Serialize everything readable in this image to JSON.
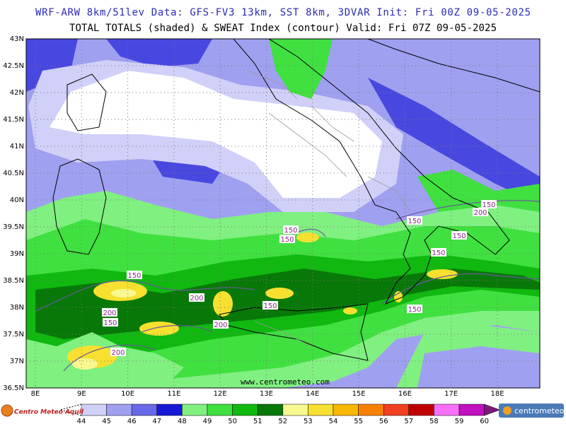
{
  "header": {
    "line1": "WRF-ARW 8km/51lev  Data: GFS-FV3 13km, SST 8km, 3DVAR  Init: Fri 00Z 09-05-2025",
    "line2": "TOTAL TOTALS (shaded) & SWEAT Index (contour)  Valid: Fri 07Z 09-05-2025"
  },
  "map": {
    "lat_ticks": [
      {
        "value": 43,
        "label": "43N"
      },
      {
        "value": 42.5,
        "label": "42.5N"
      },
      {
        "value": 42,
        "label": "42N"
      },
      {
        "value": 41.5,
        "label": "41.5N"
      },
      {
        "value": 41,
        "label": "41N"
      },
      {
        "value": 40.5,
        "label": "40.5N"
      },
      {
        "value": 40,
        "label": "40N"
      },
      {
        "value": 39.5,
        "label": "39.5N"
      },
      {
        "value": 39,
        "label": "39N"
      },
      {
        "value": 38.5,
        "label": "38.5N"
      },
      {
        "value": 38,
        "label": "38N"
      },
      {
        "value": 37.5,
        "label": "37.5N"
      },
      {
        "value": 37,
        "label": "37N"
      },
      {
        "value": 36.5,
        "label": "36.5N"
      }
    ],
    "lon_ticks": [
      {
        "value": 8,
        "label": "8E"
      },
      {
        "value": 9,
        "label": "9E"
      },
      {
        "value": 10,
        "label": "10E"
      },
      {
        "value": 11,
        "label": "11E"
      },
      {
        "value": 12,
        "label": "12E"
      },
      {
        "value": 13,
        "label": "13E"
      },
      {
        "value": 14,
        "label": "14E"
      },
      {
        "value": 15,
        "label": "15E"
      },
      {
        "value": 16,
        "label": "16E"
      },
      {
        "value": 17,
        "label": "17E"
      },
      {
        "value": 18,
        "label": "18E"
      }
    ],
    "contour_labels": [
      150,
      150,
      150,
      200,
      150,
      200,
      200,
      150,
      200,
      150,
      200,
      150,
      150,
      150,
      150
    ],
    "watermark": "www.centrometeo.com"
  },
  "colorbar": {
    "levels": [
      44,
      45,
      46,
      47,
      48,
      49,
      50,
      51,
      52,
      53,
      54,
      55,
      56,
      57,
      58,
      59,
      60
    ],
    "colors": [
      "#d0d0f8",
      "#a0a0f0",
      "#6868e8",
      "#1818d8",
      "#80f080",
      "#40e040",
      "#10b810",
      "#087808",
      "#f8f890",
      "#f8e030",
      "#f8b800",
      "#f88000",
      "#f04020",
      "#c00000",
      "#f870f8",
      "#c010c0",
      "#7a1a7a"
    ]
  },
  "logos": {
    "left": "Centro Meteo Aquil",
    "right": "centrometeo"
  }
}
